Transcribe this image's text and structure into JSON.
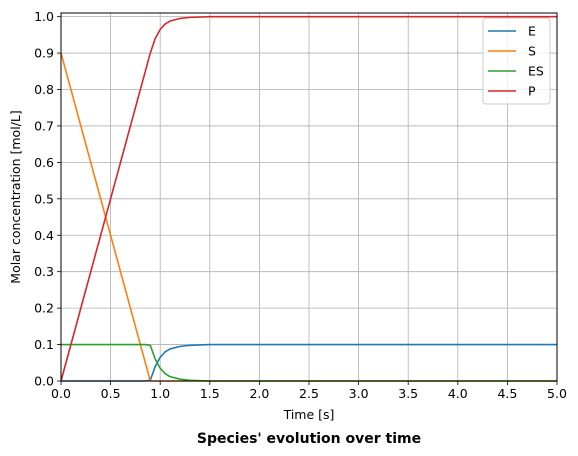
{
  "chart_data": {
    "type": "line",
    "title": "Species' evolution over time",
    "xlabel": "Time [s]",
    "ylabel": "Molar concentration [mol/L]",
    "xlim": [
      0,
      5
    ],
    "ylim": [
      0,
      1.01
    ],
    "x_ticks": [
      "0.0",
      "0.5",
      "1.0",
      "1.5",
      "2.0",
      "2.5",
      "3.0",
      "3.5",
      "4.0",
      "4.5",
      "5.0"
    ],
    "y_ticks": [
      "0.0",
      "0.1",
      "0.2",
      "0.3",
      "0.4",
      "0.5",
      "0.6",
      "0.7",
      "0.8",
      "0.9",
      "1.0"
    ],
    "grid": true,
    "legend_position": "top-right",
    "series": [
      {
        "name": "E",
        "color": "#1f77b4",
        "x": [
          0,
          0.85,
          0.9,
          0.95,
          1.0,
          1.05,
          1.1,
          1.2,
          1.3,
          1.5,
          2.0,
          5.0
        ],
        "y": [
          0.0,
          0.0,
          0.002,
          0.04,
          0.065,
          0.08,
          0.088,
          0.095,
          0.098,
          0.1,
          0.1,
          0.1
        ]
      },
      {
        "name": "S",
        "color": "#ff7f0e",
        "x": [
          0,
          0.5,
          0.88,
          0.9,
          1.0,
          5.0
        ],
        "y": [
          0.9,
          0.4,
          0.02,
          0.0,
          0.0,
          0.0
        ]
      },
      {
        "name": "ES",
        "color": "#2ca02c",
        "x": [
          0,
          0.85,
          0.9,
          0.95,
          1.0,
          1.05,
          1.1,
          1.2,
          1.3,
          1.5,
          2.0,
          5.0
        ],
        "y": [
          0.1,
          0.1,
          0.098,
          0.06,
          0.035,
          0.02,
          0.012,
          0.005,
          0.002,
          0.0,
          0.0,
          0.0
        ]
      },
      {
        "name": "P",
        "color": "#d62728",
        "x": [
          0,
          0.5,
          0.85,
          0.9,
          0.95,
          1.0,
          1.05,
          1.1,
          1.2,
          1.3,
          1.5,
          2.0,
          5.0
        ],
        "y": [
          0.0,
          0.5,
          0.85,
          0.9,
          0.94,
          0.965,
          0.98,
          0.988,
          0.995,
          0.998,
          1.0,
          1.0,
          1.0
        ]
      }
    ]
  }
}
